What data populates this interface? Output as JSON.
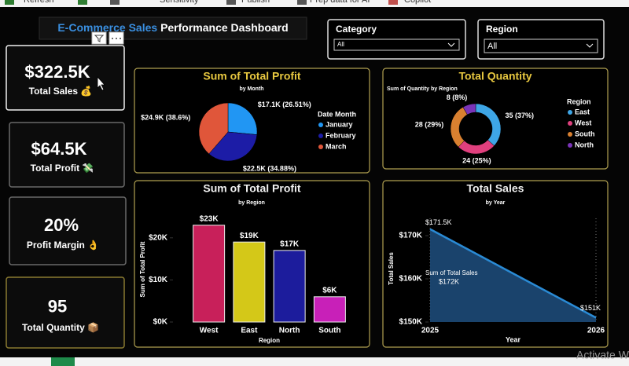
{
  "toolbar": [
    "Refresh",
    "Sensitivity",
    "Publish",
    "Prep data for AI",
    "Copilot"
  ],
  "header": {
    "title_highlight": "E-Commerce Sales",
    "title_rest": "Performance Dashboard"
  },
  "filters": [
    {
      "label": "Category",
      "value": "All"
    },
    {
      "label": "Region",
      "value": "All"
    }
  ],
  "kpis": [
    {
      "value": "$322.5K",
      "label": "Total Sales 💰"
    },
    {
      "value": "$64.5K",
      "label": "Total Profit 💸"
    },
    {
      "value": "20%",
      "label": "Profit Margin 👌"
    },
    {
      "value": "95",
      "label": "Total Quantity 📦"
    }
  ],
  "chart_data": [
    {
      "type": "pie",
      "title": "Sum of Total Profit",
      "subtitle": "by Month",
      "legend_title": "Date Month",
      "categories": [
        "January",
        "February",
        "March"
      ],
      "values": [
        17100,
        22500,
        24900
      ],
      "value_labels": [
        "$17.1K (26.51%)",
        "$22.5K (34.88%)",
        "$24.9K (38.6%)"
      ],
      "colors": [
        "#2196f3",
        "#1c1ca6",
        "#e0563a"
      ]
    },
    {
      "type": "donut",
      "title": "Total Quantity",
      "subtitle": "Sum of Quantity by Region",
      "legend_title": "Region",
      "categories": [
        "East",
        "West",
        "South",
        "North"
      ],
      "values": [
        35,
        24,
        28,
        8
      ],
      "value_labels": [
        "35 (37%)",
        "24 (25%)",
        "28 (29%)",
        "8 (8%)"
      ],
      "colors": [
        "#3ea6e6",
        "#e0407e",
        "#d98030",
        "#7a34b8"
      ]
    },
    {
      "type": "bar",
      "title": "Sum of Total Profit",
      "subtitle": "by Region",
      "xlabel": "Region",
      "ylabel": "Sum of Total Profit",
      "categories": [
        "West",
        "East",
        "North",
        "South"
      ],
      "values": [
        23000,
        19000,
        17000,
        6000
      ],
      "value_labels": [
        "$23K",
        "$19K",
        "$17K",
        "$6K"
      ],
      "colors": [
        "#c8205a",
        "#d4c818",
        "#1c1c9c",
        "#c820b8"
      ],
      "ylim": [
        0,
        25000
      ],
      "yticks": [
        {
          "value": 0,
          "label": "$0K"
        },
        {
          "value": 10000,
          "label": "$10K"
        },
        {
          "value": 20000,
          "label": "$20K"
        }
      ]
    },
    {
      "type": "area",
      "title": "Total Sales",
      "subtitle": "by Year",
      "xlabel": "Year",
      "ylabel": "Total Sales",
      "categories": [
        "2025",
        "2026"
      ],
      "values": [
        171500,
        151000
      ],
      "value_labels": [
        "$171.5K",
        "$151K"
      ],
      "color": "#2a8ad4",
      "annotation": [
        "Sum of Total Sales",
        "$172K"
      ],
      "ylim": [
        150000,
        174000
      ],
      "yticks": [
        {
          "value": 150000,
          "label": "$150K"
        },
        {
          "value": 160000,
          "label": "$160K"
        },
        {
          "value": 170000,
          "label": "$170K"
        }
      ]
    }
  ],
  "watermark": "Activate W"
}
